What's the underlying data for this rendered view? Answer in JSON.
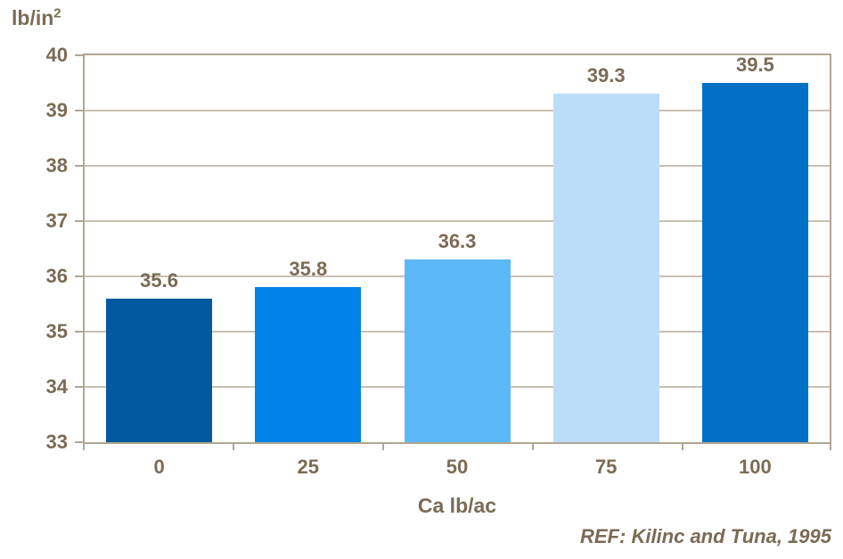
{
  "chart": {
    "y_axis_title_main": "lb/in",
    "y_axis_title_sup": "2",
    "x_axis_title": "Ca lb/ac",
    "reference": "REF: Kilinc and Tuna, 1995"
  },
  "chart_data": {
    "type": "bar",
    "title": "",
    "xlabel": "Ca lb/ac",
    "ylabel": "lb/in2",
    "categories": [
      "0",
      "25",
      "50",
      "75",
      "100"
    ],
    "values": [
      35.6,
      35.8,
      36.3,
      39.3,
      39.5
    ],
    "value_labels": [
      "35.6",
      "35.8",
      "36.3",
      "39.3",
      "39.5"
    ],
    "bar_colors": [
      "#005a9d",
      "#0083e8",
      "#5cb8f7",
      "#bbddfa",
      "#0071c5"
    ],
    "ylim": [
      33,
      40
    ],
    "ytick_step": 1,
    "y_tick_labels": [
      "33",
      "34",
      "35",
      "36",
      "37",
      "38",
      "39",
      "40"
    ],
    "grid": true,
    "legend": "none",
    "annotation": "REF: Kilinc and Tuna, 1995",
    "colors": {
      "text": "#7b6b55",
      "axis": "#b0a695",
      "gridline": "#c9c1b4",
      "background": "#ffffff"
    }
  }
}
